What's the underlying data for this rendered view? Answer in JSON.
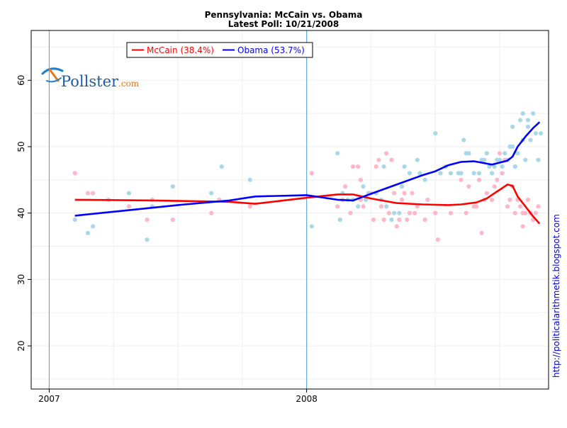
{
  "chart_data": {
    "type": "scatter",
    "title": "Pennsylvania: McCain vs. Obama",
    "subtitle": "Latest Poll: 10/21/2008",
    "xlabel": "",
    "ylabel": "",
    "x_ticks": [
      {
        "label": "2007",
        "value": 2007.0
      },
      {
        "label": "2008",
        "value": 2008.0
      }
    ],
    "xlim": [
      2006.93,
      2008.94
    ],
    "ylim": [
      13.5,
      67.5
    ],
    "y_ticks": [
      20,
      30,
      40,
      50,
      60
    ],
    "grid": true,
    "year_markers": [
      2007.0,
      2008.0
    ],
    "legend_position": "top-left",
    "series": [
      {
        "name": "McCain (38.4%)",
        "color": "#ff0000",
        "point_color": "#ffb6c8",
        "trend": [
          [
            2007.1,
            42.0
          ],
          [
            2007.4,
            41.9
          ],
          [
            2007.7,
            41.7
          ],
          [
            2007.8,
            41.4
          ],
          [
            2008.0,
            42.3
          ],
          [
            2008.12,
            42.8
          ],
          [
            2008.18,
            42.8
          ],
          [
            2008.25,
            42.2
          ],
          [
            2008.35,
            41.5
          ],
          [
            2008.45,
            41.3
          ],
          [
            2008.55,
            41.2
          ],
          [
            2008.6,
            41.3
          ],
          [
            2008.66,
            41.6
          ],
          [
            2008.7,
            42.2
          ],
          [
            2008.73,
            43.0
          ],
          [
            2008.75,
            43.5
          ],
          [
            2008.78,
            44.3
          ],
          [
            2008.8,
            44.1
          ],
          [
            2008.82,
            42.5
          ],
          [
            2008.85,
            41.0
          ],
          [
            2008.88,
            39.5
          ],
          [
            2008.905,
            38.4
          ]
        ],
        "points": [
          [
            2007.1,
            46
          ],
          [
            2007.15,
            43
          ],
          [
            2007.17,
            43
          ],
          [
            2007.23,
            42
          ],
          [
            2007.31,
            41
          ],
          [
            2007.38,
            39
          ],
          [
            2007.4,
            42
          ],
          [
            2007.48,
            39
          ],
          [
            2007.63,
            40
          ],
          [
            2007.66,
            42
          ],
          [
            2007.78,
            41
          ],
          [
            2008.02,
            46
          ],
          [
            2008.12,
            41
          ],
          [
            2008.13,
            39
          ],
          [
            2008.14,
            42
          ],
          [
            2008.15,
            44
          ],
          [
            2008.17,
            40
          ],
          [
            2008.18,
            47
          ],
          [
            2008.2,
            47
          ],
          [
            2008.21,
            45
          ],
          [
            2008.21,
            42
          ],
          [
            2008.22,
            41
          ],
          [
            2008.24,
            43
          ],
          [
            2008.25,
            43
          ],
          [
            2008.26,
            39
          ],
          [
            2008.27,
            47
          ],
          [
            2008.28,
            48
          ],
          [
            2008.29,
            41
          ],
          [
            2008.3,
            39
          ],
          [
            2008.31,
            49
          ],
          [
            2008.32,
            40
          ],
          [
            2008.33,
            48
          ],
          [
            2008.34,
            43
          ],
          [
            2008.35,
            38
          ],
          [
            2008.36,
            39
          ],
          [
            2008.37,
            42
          ],
          [
            2008.38,
            43
          ],
          [
            2008.39,
            39
          ],
          [
            2008.4,
            40
          ],
          [
            2008.41,
            43
          ],
          [
            2008.42,
            40
          ],
          [
            2008.43,
            41
          ],
          [
            2008.46,
            39
          ],
          [
            2008.47,
            42
          ],
          [
            2008.5,
            40
          ],
          [
            2008.51,
            36
          ],
          [
            2008.56,
            40
          ],
          [
            2008.6,
            45
          ],
          [
            2008.62,
            40
          ],
          [
            2008.63,
            44
          ],
          [
            2008.65,
            41
          ],
          [
            2008.66,
            41
          ],
          [
            2008.67,
            45
          ],
          [
            2008.68,
            37
          ],
          [
            2008.69,
            42
          ],
          [
            2008.7,
            43
          ],
          [
            2008.72,
            42
          ],
          [
            2008.73,
            44
          ],
          [
            2008.74,
            45
          ],
          [
            2008.75,
            49
          ],
          [
            2008.76,
            46
          ],
          [
            2008.77,
            48
          ],
          [
            2008.78,
            41
          ],
          [
            2008.79,
            42
          ],
          [
            2008.8,
            44
          ],
          [
            2008.81,
            40
          ],
          [
            2008.82,
            42
          ],
          [
            2008.83,
            41
          ],
          [
            2008.84,
            40
          ],
          [
            2008.84,
            38
          ],
          [
            2008.85,
            40
          ],
          [
            2008.86,
            42
          ],
          [
            2008.87,
            40
          ],
          [
            2008.88,
            39
          ],
          [
            2008.89,
            40
          ],
          [
            2008.9,
            41
          ]
        ]
      },
      {
        "name": "Obama (53.7%)",
        "color": "#0000ff",
        "point_color": "#a8d8e8",
        "trend": [
          [
            2007.1,
            39.6
          ],
          [
            2007.3,
            40.4
          ],
          [
            2007.5,
            41.2
          ],
          [
            2007.7,
            41.9
          ],
          [
            2007.8,
            42.5
          ],
          [
            2008.0,
            42.7
          ],
          [
            2008.12,
            42.0
          ],
          [
            2008.18,
            41.9
          ],
          [
            2008.25,
            42.9
          ],
          [
            2008.35,
            44.3
          ],
          [
            2008.45,
            45.7
          ],
          [
            2008.5,
            46.3
          ],
          [
            2008.55,
            47.2
          ],
          [
            2008.6,
            47.7
          ],
          [
            2008.65,
            47.8
          ],
          [
            2008.68,
            47.6
          ],
          [
            2008.72,
            47.3
          ],
          [
            2008.75,
            47.6
          ],
          [
            2008.78,
            47.9
          ],
          [
            2008.8,
            48.5
          ],
          [
            2008.82,
            50.0
          ],
          [
            2008.85,
            51.5
          ],
          [
            2008.88,
            52.8
          ],
          [
            2008.905,
            53.7
          ]
        ],
        "points": [
          [
            2007.1,
            39
          ],
          [
            2007.15,
            37
          ],
          [
            2007.17,
            38
          ],
          [
            2007.31,
            43
          ],
          [
            2007.38,
            36
          ],
          [
            2007.4,
            41
          ],
          [
            2007.48,
            44
          ],
          [
            2007.63,
            43
          ],
          [
            2007.67,
            47
          ],
          [
            2007.78,
            45
          ],
          [
            2008.02,
            38
          ],
          [
            2008.12,
            49
          ],
          [
            2008.13,
            39
          ],
          [
            2008.14,
            43
          ],
          [
            2008.16,
            42
          ],
          [
            2008.18,
            42
          ],
          [
            2008.2,
            41
          ],
          [
            2008.22,
            44
          ],
          [
            2008.23,
            42
          ],
          [
            2008.24,
            43
          ],
          [
            2008.27,
            43
          ],
          [
            2008.29,
            42
          ],
          [
            2008.3,
            47
          ],
          [
            2008.31,
            41
          ],
          [
            2008.33,
            39
          ],
          [
            2008.34,
            40
          ],
          [
            2008.36,
            40
          ],
          [
            2008.37,
            44
          ],
          [
            2008.38,
            47
          ],
          [
            2008.4,
            46
          ],
          [
            2008.43,
            48
          ],
          [
            2008.44,
            46
          ],
          [
            2008.46,
            45
          ],
          [
            2008.5,
            52
          ],
          [
            2008.52,
            46
          ],
          [
            2008.54,
            47
          ],
          [
            2008.56,
            46
          ],
          [
            2008.59,
            46
          ],
          [
            2008.6,
            46
          ],
          [
            2008.61,
            51
          ],
          [
            2008.62,
            49
          ],
          [
            2008.63,
            49
          ],
          [
            2008.65,
            46
          ],
          [
            2008.67,
            46
          ],
          [
            2008.68,
            48
          ],
          [
            2008.69,
            48
          ],
          [
            2008.7,
            49
          ],
          [
            2008.71,
            47
          ],
          [
            2008.72,
            46
          ],
          [
            2008.73,
            47
          ],
          [
            2008.74,
            48
          ],
          [
            2008.75,
            48
          ],
          [
            2008.76,
            47
          ],
          [
            2008.77,
            49
          ],
          [
            2008.78,
            48
          ],
          [
            2008.79,
            50
          ],
          [
            2008.8,
            53
          ],
          [
            2008.8,
            50
          ],
          [
            2008.81,
            47
          ],
          [
            2008.82,
            49
          ],
          [
            2008.83,
            54
          ],
          [
            2008.84,
            51
          ],
          [
            2008.84,
            55
          ],
          [
            2008.85,
            48
          ],
          [
            2008.86,
            54
          ],
          [
            2008.86,
            53
          ],
          [
            2008.87,
            51
          ],
          [
            2008.88,
            55
          ],
          [
            2008.89,
            52
          ],
          [
            2008.9,
            48
          ],
          [
            2008.91,
            52
          ]
        ]
      }
    ]
  },
  "logo": {
    "text": "Pollster",
    "suffix": ".com"
  },
  "side_credit": "http://politicalarithmetik.blogspot.com"
}
